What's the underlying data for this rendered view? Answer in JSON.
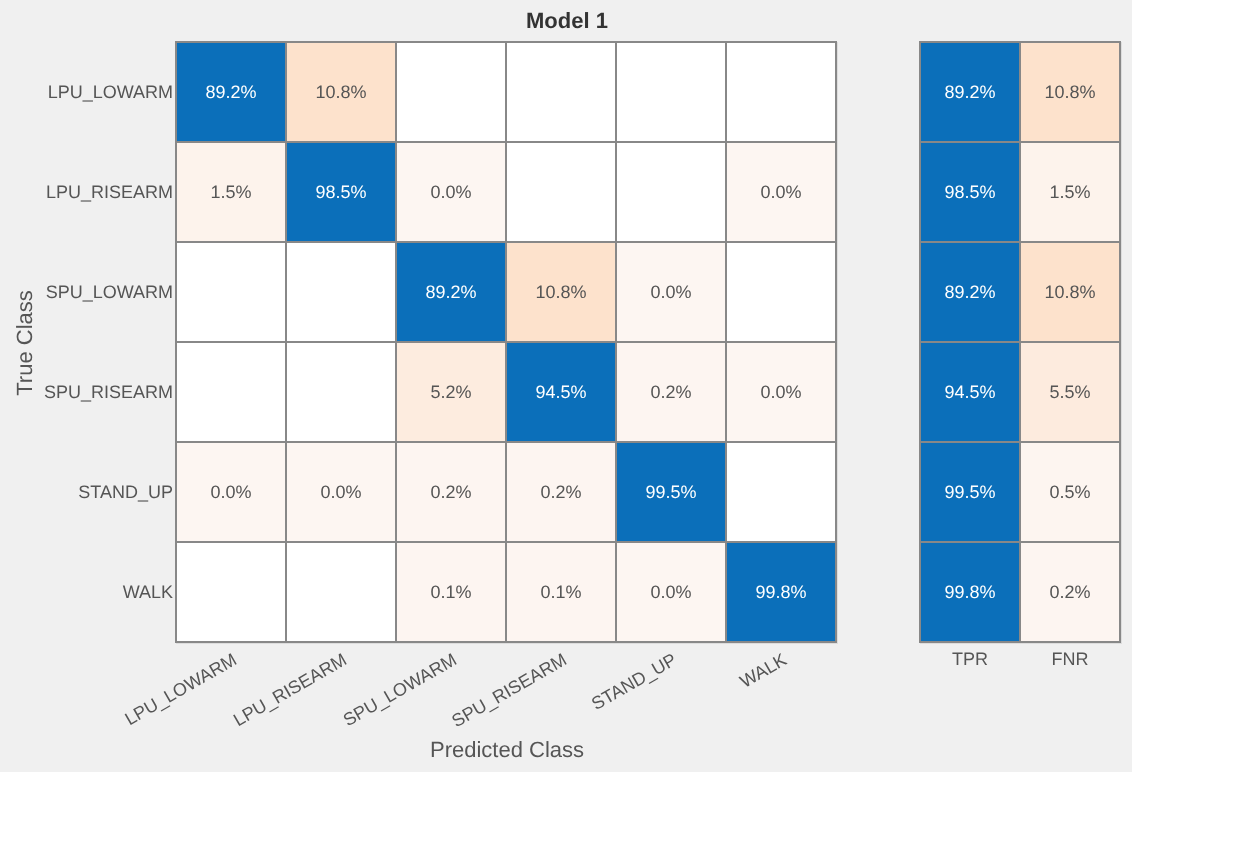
{
  "chart_data": [
    {
      "type": "heatmap",
      "title": "Model 1",
      "xlabel": "Predicted Class",
      "ylabel": "True Class",
      "categories": [
        "LPU_LOWARM",
        "LPU_RISEARM",
        "SPU_LOWARM",
        "SPU_RISEARM",
        "STAND_UP",
        "WALK"
      ],
      "y_categories": [
        "LPU_LOWARM",
        "LPU_RISEARM",
        "SPU_LOWARM",
        "SPU_RISEARM",
        "STAND_UP",
        "WALK"
      ],
      "cells": [
        [
          89.2,
          10.8,
          null,
          null,
          null,
          null
        ],
        [
          1.5,
          98.5,
          0.0,
          null,
          null,
          0.0
        ],
        [
          null,
          null,
          89.2,
          10.8,
          0.0,
          null
        ],
        [
          null,
          null,
          5.2,
          94.5,
          0.2,
          0.0
        ],
        [
          0.0,
          0.0,
          0.2,
          0.2,
          99.5,
          null
        ],
        [
          null,
          null,
          0.1,
          0.1,
          0.0,
          99.8
        ]
      ],
      "cell_labels": [
        [
          "89.2%",
          "10.8%",
          null,
          null,
          null,
          null
        ],
        [
          "1.5%",
          "98.5%",
          "0.0%",
          null,
          null,
          "0.0%"
        ],
        [
          null,
          null,
          "89.2%",
          "10.8%",
          "0.0%",
          null
        ],
        [
          null,
          null,
          "5.2%",
          "94.5%",
          "0.2%",
          "0.0%"
        ],
        [
          "0.0%",
          "0.0%",
          "0.2%",
          "0.2%",
          "99.5%",
          null
        ],
        [
          null,
          null,
          "0.1%",
          "0.1%",
          "0.0%",
          "99.8%"
        ]
      ]
    },
    {
      "type": "heatmap",
      "tick_labels": "x",
      "categories": [
        "TPR",
        "FNR"
      ],
      "y_categories": [
        null,
        null,
        null,
        null,
        null,
        null
      ],
      "cells": [
        [
          89.2,
          10.8
        ],
        [
          98.5,
          1.5
        ],
        [
          89.2,
          10.8
        ],
        [
          94.5,
          5.5
        ],
        [
          99.5,
          0.5
        ],
        [
          99.8,
          0.2
        ]
      ],
      "cell_labels": [
        [
          "89.2%",
          "10.8%"
        ],
        [
          "98.5%",
          "1.5%"
        ],
        [
          "89.2%",
          "10.8%"
        ],
        [
          "94.5%",
          "5.5%"
        ],
        [
          "99.5%",
          "0.5%"
        ],
        [
          "99.8%",
          "0.2%"
        ]
      ]
    }
  ]
}
